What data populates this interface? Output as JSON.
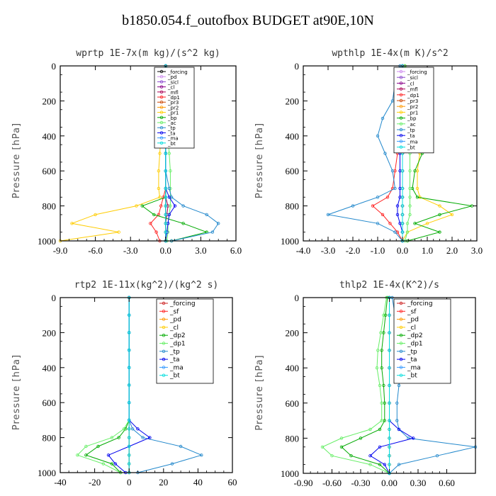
{
  "title": "b1850.054.f_outofbox  BUDGET at90E,10N",
  "chart_data": [
    {
      "type": "line",
      "title": "wprtp  1E-7x(m kg)/(s^2 kg)",
      "ylabel": "Pressure [hPa]",
      "xlim": [
        -9,
        6
      ],
      "ylim": [
        1000,
        0
      ],
      "xticks": [
        -9.0,
        -6.0,
        -3.0,
        0.0,
        3.0,
        6.0
      ],
      "xtick_labels": [
        "-9.0",
        "-6.0",
        "-3.0",
        "0.0",
        "3.0",
        "6.0"
      ],
      "yticks": [
        0,
        200,
        400,
        600,
        800,
        1000
      ],
      "y": [
        0,
        100,
        200,
        300,
        400,
        500,
        600,
        700,
        750,
        800,
        850,
        900,
        950,
        1000
      ],
      "series": [
        {
          "name": "_forcing",
          "color": "#000000",
          "values": [
            0,
            0,
            0,
            0,
            0,
            0,
            0,
            0,
            0,
            0,
            0,
            0,
            0,
            0
          ]
        },
        {
          "name": "_pd",
          "color": "#cc88ee",
          "values": [
            0,
            0,
            0,
            0,
            0,
            0,
            0,
            0,
            0,
            0,
            0,
            0,
            0,
            0
          ]
        },
        {
          "name": "_sicl",
          "color": "#8844cc",
          "values": [
            0,
            0,
            0,
            0,
            0,
            0,
            0,
            0,
            0,
            0,
            0,
            0,
            0,
            0
          ]
        },
        {
          "name": "_cl",
          "color": "#880088",
          "values": [
            0,
            0,
            0,
            0,
            0,
            0,
            0,
            0,
            0,
            0,
            0,
            0,
            0,
            0
          ]
        },
        {
          "name": "_mfl",
          "color": "#aa0055",
          "values": [
            0,
            0,
            0,
            0,
            0,
            0,
            0,
            0,
            0,
            0.2,
            0.1,
            0,
            0,
            0
          ]
        },
        {
          "name": "_dp1",
          "color": "#ff2222",
          "values": [
            0,
            0,
            0,
            0,
            0,
            0,
            0,
            0,
            -0.2,
            -0.4,
            -0.6,
            -1.3,
            -0.8,
            -0.5
          ]
        },
        {
          "name": "_pr3",
          "color": "#cc4400",
          "values": [
            0,
            0,
            0,
            0,
            0,
            0,
            0,
            0,
            0,
            0,
            0,
            0,
            0,
            0
          ]
        },
        {
          "name": "_pr2",
          "color": "#ff9900",
          "values": [
            0,
            0,
            0,
            0,
            0,
            0,
            0,
            0,
            0,
            0,
            0,
            0,
            0,
            0
          ]
        },
        {
          "name": "_pr1",
          "color": "#ffcc00",
          "values": [
            0,
            0,
            0,
            0,
            -0.4,
            -0.5,
            -0.6,
            -0.6,
            -0.5,
            -2.5,
            -6.0,
            -8.0,
            -4.0,
            -9.0
          ]
        },
        {
          "name": "_bp",
          "color": "#00aa00",
          "values": [
            0,
            0,
            0,
            0,
            0,
            0,
            0,
            0,
            0,
            -2.0,
            -1.0,
            1.5,
            3.5,
            0.5
          ]
        },
        {
          "name": "_ac",
          "color": "#66ee66",
          "values": [
            0,
            0,
            0,
            0,
            0.2,
            0.3,
            0.4,
            0.4,
            0.4,
            0.4,
            0.3,
            0.2,
            0.2,
            0.1
          ]
        },
        {
          "name": "_tp",
          "color": "#2288cc",
          "values": [
            0,
            0,
            0,
            0,
            0,
            0,
            0,
            0.3,
            0.5,
            1.5,
            3.5,
            4.5,
            4.0,
            0.5
          ]
        },
        {
          "name": "_ta",
          "color": "#0000ee",
          "values": [
            0,
            0,
            0,
            0,
            0,
            0,
            0,
            0,
            0.3,
            0.8,
            0.3,
            0.2,
            0.1,
            0
          ]
        },
        {
          "name": "_ma",
          "color": "#3399ff",
          "values": [
            0,
            0,
            0,
            0,
            0,
            0,
            0,
            0,
            0,
            0,
            0,
            0,
            0,
            0
          ]
        },
        {
          "name": "_bt",
          "color": "#00dddd",
          "values": [
            0,
            0,
            0,
            0,
            0,
            0,
            0,
            0,
            0,
            0,
            0,
            0,
            0,
            0
          ]
        }
      ],
      "legend": {
        "placement": "top-right-inside"
      }
    },
    {
      "type": "line",
      "title": "wpthlp  1E-4x(m K)/s^2",
      "ylabel": "Pressure [hPa]",
      "xlim": [
        -4,
        3
      ],
      "ylim": [
        1000,
        0
      ],
      "xticks": [
        -4.0,
        -3.0,
        -2.0,
        -1.0,
        0.0,
        1.0,
        2.0,
        3.0
      ],
      "xtick_labels": [
        "-4.0",
        "-3.0",
        "-2.0",
        "-1.0",
        "0.0",
        "1.0",
        "2.0",
        "3.0"
      ],
      "yticks": [
        0,
        200,
        400,
        600,
        800,
        1000
      ],
      "y": [
        0,
        100,
        200,
        300,
        400,
        500,
        600,
        700,
        750,
        800,
        850,
        900,
        950,
        1000
      ],
      "series": [
        {
          "name": "_forcing",
          "color": "#cc88ee",
          "values": [
            0,
            0,
            0,
            0,
            0,
            0,
            0,
            0,
            0,
            0,
            0,
            0,
            0,
            0
          ]
        },
        {
          "name": "_sicl",
          "color": "#8844cc",
          "values": [
            0,
            0,
            0,
            0,
            0,
            0,
            0,
            0,
            0,
            0,
            0,
            0,
            0,
            0
          ]
        },
        {
          "name": "_cl",
          "color": "#880088",
          "values": [
            0,
            0,
            0,
            0,
            0,
            0,
            0,
            0,
            0,
            0,
            0,
            0,
            0,
            0
          ]
        },
        {
          "name": "_mfl",
          "color": "#aa0055",
          "values": [
            0,
            0,
            0,
            0,
            0,
            0,
            0,
            0,
            0,
            0,
            0,
            0,
            0,
            0
          ]
        },
        {
          "name": "_dp1",
          "color": "#ff2222",
          "values": [
            0,
            0,
            -0.1,
            -0.1,
            -0.2,
            -0.2,
            -0.3,
            -0.4,
            -0.6,
            -1.2,
            -0.8,
            -0.5,
            -0.2,
            0
          ]
        },
        {
          "name": "_pr3",
          "color": "#cc4400",
          "values": [
            0,
            0,
            0,
            0,
            0,
            0,
            0,
            0,
            0,
            0,
            0,
            0,
            0,
            0
          ]
        },
        {
          "name": "_pr2",
          "color": "#ff9900",
          "values": [
            0,
            0,
            0,
            0,
            0,
            0,
            0,
            0,
            0,
            0,
            0,
            0,
            0,
            0
          ]
        },
        {
          "name": "_pr1",
          "color": "#ffcc00",
          "values": [
            0.1,
            0.2,
            0.4,
            0.5,
            0.6,
            0.7,
            0.6,
            0.6,
            0.7,
            1.5,
            2.0,
            1.0,
            0.2,
            0
          ]
        },
        {
          "name": "_bp",
          "color": "#00aa00",
          "values": [
            0.1,
            0.3,
            0.6,
            0.9,
            1.0,
            0.8,
            0.5,
            0.4,
            0.6,
            2.8,
            1.5,
            0.5,
            1.5,
            0.2
          ]
        },
        {
          "name": "_ac",
          "color": "#66ee66",
          "values": [
            0.1,
            0.2,
            0.3,
            0.3,
            0.3,
            0.3,
            0.3,
            0.3,
            0.3,
            0.3,
            0.3,
            0.2,
            0.2,
            0.1
          ]
        },
        {
          "name": "_tp",
          "color": "#2288cc",
          "values": [
            -0.1,
            -0.3,
            -0.4,
            -0.8,
            -1.0,
            -0.7,
            -0.4,
            -0.3,
            -1.0,
            -2.0,
            -3.0,
            -1.0,
            -0.3,
            0
          ]
        },
        {
          "name": "_ta",
          "color": "#0000ee",
          "values": [
            0,
            0,
            0,
            -0.1,
            -0.1,
            -0.1,
            -0.1,
            -0.1,
            -0.1,
            -0.2,
            -0.2,
            -0.1,
            0,
            0
          ]
        },
        {
          "name": "_ma",
          "color": "#3399ff",
          "values": [
            0,
            0,
            0,
            0,
            0,
            0,
            0,
            0,
            0,
            0,
            0,
            0,
            0,
            0
          ]
        },
        {
          "name": "_bt",
          "color": "#00dddd",
          "values": [
            0,
            0,
            0,
            0,
            0,
            0,
            0,
            0,
            0,
            0,
            0,
            0,
            0,
            0
          ]
        }
      ],
      "legend": {
        "placement": "top-right-inside"
      }
    },
    {
      "type": "line",
      "title": "rtp2  1E-11x(kg^2)/(kg^2 s)",
      "ylabel": "Pressure [hPa]",
      "xlim": [
        -40,
        60
      ],
      "ylim": [
        1000,
        0
      ],
      "xticks": [
        -40,
        -20,
        0,
        20,
        40,
        60
      ],
      "xtick_labels": [
        "-40",
        "-20",
        "0",
        "20",
        "40",
        "60"
      ],
      "yticks": [
        0,
        200,
        400,
        600,
        800,
        1000
      ],
      "y": [
        0,
        100,
        200,
        300,
        400,
        500,
        600,
        700,
        750,
        800,
        850,
        900,
        950,
        1000
      ],
      "series": [
        {
          "name": "_forcing",
          "color": "#cc2222",
          "values": [
            0,
            0,
            0,
            0,
            0,
            0,
            0,
            0,
            0,
            0,
            0,
            0,
            0,
            0
          ]
        },
        {
          "name": "_sf",
          "color": "#ff2222",
          "values": [
            0,
            0,
            0,
            0,
            0,
            0,
            0,
            0,
            0,
            0,
            0,
            0,
            0,
            0
          ]
        },
        {
          "name": "_pd",
          "color": "#ff9900",
          "values": [
            0,
            0,
            0,
            0,
            0,
            0,
            0,
            0,
            0,
            0,
            0,
            0,
            0,
            0
          ]
        },
        {
          "name": "_cl",
          "color": "#ffcc00",
          "values": [
            0,
            0,
            0,
            0,
            0,
            0,
            0,
            0,
            0,
            0,
            0,
            0,
            0,
            0
          ]
        },
        {
          "name": "_dp2",
          "color": "#00aa00",
          "values": [
            0,
            0,
            0,
            0,
            0,
            0,
            0,
            0,
            -2,
            -6,
            -18,
            -25,
            -10,
            -5
          ]
        },
        {
          "name": "_dp1",
          "color": "#66ee66",
          "values": [
            0,
            0,
            0,
            0,
            0,
            0,
            0,
            0,
            -3,
            -10,
            -25,
            -30,
            -15,
            -5
          ]
        },
        {
          "name": "_tp",
          "color": "#2288cc",
          "values": [
            0,
            0,
            0,
            0,
            0,
            0,
            0,
            0,
            2,
            8,
            30,
            42,
            25,
            5
          ]
        },
        {
          "name": "_ta",
          "color": "#0000ee",
          "values": [
            0,
            0,
            0,
            0,
            0,
            0,
            0,
            0,
            5,
            12,
            0,
            -12,
            -8,
            -2
          ]
        },
        {
          "name": "_ma",
          "color": "#3399ff",
          "values": [
            0,
            0,
            0,
            0,
            0,
            0,
            0,
            0,
            0,
            0,
            0,
            0,
            0,
            0
          ]
        },
        {
          "name": "_bt",
          "color": "#00dddd",
          "values": [
            0,
            0,
            0,
            0,
            0,
            0,
            0,
            0,
            0,
            0,
            0,
            0,
            0,
            0
          ]
        }
      ],
      "legend": {
        "placement": "top-right-inside"
      }
    },
    {
      "type": "line",
      "title": "thlp2  1E-4x(K^2)/s",
      "ylabel": "Pressure [hPa]",
      "xlim": [
        -0.9,
        0.9
      ],
      "ylim": [
        1000,
        0
      ],
      "xticks": [
        -0.9,
        -0.6,
        -0.3,
        0.0,
        0.3,
        0.6
      ],
      "xtick_labels": [
        "-0.90",
        "-0.60",
        "-0.30",
        "0.00",
        "0.30",
        "0.60"
      ],
      "yticks": [
        0,
        200,
        400,
        600,
        800,
        1000
      ],
      "y": [
        0,
        100,
        200,
        300,
        400,
        500,
        600,
        700,
        750,
        800,
        850,
        900,
        950,
        1000
      ],
      "series": [
        {
          "name": "_forcing",
          "color": "#cc2222",
          "values": [
            0,
            0,
            0,
            0,
            0,
            0,
            0,
            0,
            0,
            0,
            0,
            0,
            0,
            0
          ]
        },
        {
          "name": "_sf",
          "color": "#ff2222",
          "values": [
            0,
            0,
            0,
            0,
            0,
            0,
            0,
            0,
            0,
            0,
            0,
            0,
            0,
            0
          ]
        },
        {
          "name": "_pd",
          "color": "#ff9900",
          "values": [
            0,
            0,
            0,
            0,
            0,
            0,
            0,
            0,
            0,
            0,
            0,
            0,
            0,
            0
          ]
        },
        {
          "name": "_cl",
          "color": "#ffcc00",
          "values": [
            0,
            0,
            0,
            0,
            0,
            0,
            0,
            0,
            0,
            0,
            0,
            0,
            0,
            0
          ]
        },
        {
          "name": "_dp2",
          "color": "#00aa00",
          "values": [
            -0.02,
            -0.04,
            -0.06,
            -0.08,
            -0.08,
            -0.06,
            -0.05,
            -0.05,
            -0.1,
            -0.3,
            -0.5,
            -0.4,
            -0.1,
            0
          ]
        },
        {
          "name": "_dp1",
          "color": "#66ee66",
          "values": [
            -0.03,
            -0.06,
            -0.09,
            -0.12,
            -0.13,
            -0.1,
            -0.08,
            -0.08,
            -0.2,
            -0.5,
            -0.7,
            -0.6,
            -0.2,
            0
          ]
        },
        {
          "name": "_tp",
          "color": "#2288cc",
          "values": [
            0.03,
            0.06,
            0.09,
            0.12,
            0.13,
            0.1,
            0.08,
            0.08,
            0.1,
            0.2,
            0.9,
            0.5,
            0.1,
            0
          ]
        },
        {
          "name": "_ta",
          "color": "#0000ee",
          "values": [
            0,
            0,
            0,
            0,
            0,
            0,
            0,
            0,
            0.1,
            0.25,
            -0.1,
            -0.2,
            -0.05,
            0
          ]
        },
        {
          "name": "_ma",
          "color": "#3399ff",
          "values": [
            0,
            0,
            0,
            0,
            0,
            0,
            0,
            0,
            0,
            0,
            0,
            0,
            0,
            0
          ]
        },
        {
          "name": "_bt",
          "color": "#00dddd",
          "values": [
            0,
            0,
            0,
            0,
            0,
            0,
            0,
            0,
            0,
            0,
            0,
            0,
            0,
            0
          ]
        }
      ],
      "legend": {
        "placement": "top-right-inside"
      }
    }
  ]
}
